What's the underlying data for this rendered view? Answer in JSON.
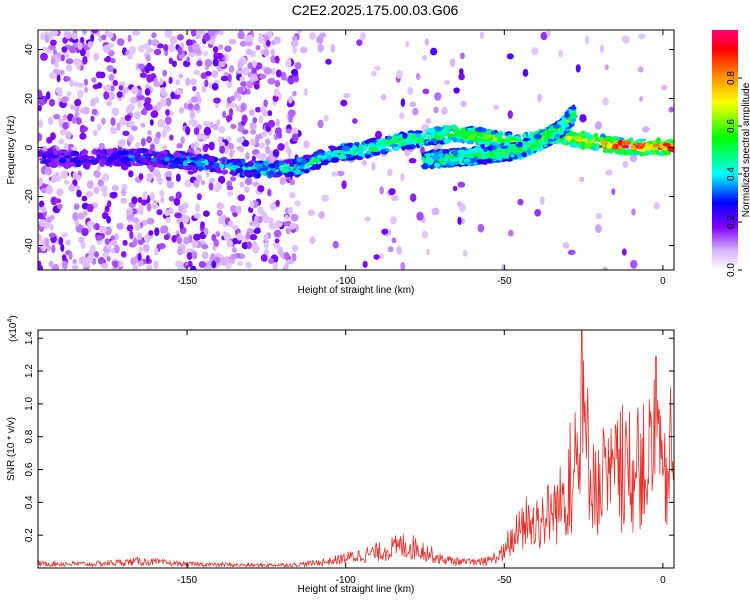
{
  "title": "C2E2.2025.175.00.03.G06",
  "chart_data": [
    {
      "type": "heatmap",
      "xlabel": "Height of straight line (km)",
      "ylabel": "Frequency (Hz)",
      "xlim": [
        -197,
        3.5
      ],
      "ylim": [
        -50,
        48
      ],
      "x_ticks": [
        -150,
        -100,
        -50,
        0
      ],
      "y_ticks": [
        -40,
        -20,
        0,
        20,
        40
      ],
      "colorbar": {
        "label": "Normalized spectral amplitude",
        "range": [
          0,
          1
        ],
        "ticks": [
          0.0,
          0.2,
          0.4,
          0.6,
          0.8
        ],
        "colors": [
          "#ffffff",
          "#d9b3ff",
          "#8000ff",
          "#0000ff",
          "#00ffff",
          "#00ff00",
          "#ffff00",
          "#ff8000",
          "#ff0000",
          "#ff0080"
        ]
      },
      "ridge": [
        {
          "x": -195,
          "y": -4
        },
        {
          "x": -185,
          "y": -5
        },
        {
          "x": -175,
          "y": -4
        },
        {
          "x": -165,
          "y": -4
        },
        {
          "x": -155,
          "y": -5
        },
        {
          "x": -145,
          "y": -6
        },
        {
          "x": -135,
          "y": -8
        },
        {
          "x": -125,
          "y": -9
        },
        {
          "x": -115,
          "y": -8
        },
        {
          "x": -105,
          "y": -3
        },
        {
          "x": -95,
          "y": -1
        },
        {
          "x": -85,
          "y": 2
        },
        {
          "x": -75,
          "y": 4
        },
        {
          "x": -65,
          "y": 6
        },
        {
          "x": -55,
          "y": 4
        },
        {
          "x": -45,
          "y": 2
        },
        {
          "x": -35,
          "y": 5
        },
        {
          "x": -25,
          "y": 3
        },
        {
          "x": -15,
          "y": 1
        },
        {
          "x": -5,
          "y": 0
        },
        {
          "x": 2,
          "y": 0
        }
      ],
      "secondary_ridge": [
        {
          "x": -75,
          "y": -5
        },
        {
          "x": -65,
          "y": -4
        },
        {
          "x": -55,
          "y": -3
        },
        {
          "x": -45,
          "y": -1
        },
        {
          "x": -38,
          "y": 3
        },
        {
          "x": -32,
          "y": 8
        },
        {
          "x": -28,
          "y": 14
        }
      ]
    },
    {
      "type": "line",
      "xlabel": "Height of straight line (km)",
      "ylabel": "SNR (10 * v/v)",
      "y_multiplier": "(x10",
      "y_multiplier_exp": "4",
      "y_multiplier_close": ")",
      "xlim": [
        -197,
        3.5
      ],
      "ylim": [
        0,
        1.45
      ],
      "x_ticks": [
        -150,
        -100,
        -50,
        0
      ],
      "y_ticks": [
        0.2,
        0.4,
        0.6,
        0.8,
        1.0,
        1.2,
        1.4
      ],
      "line_color": "#e8302a",
      "series": [
        {
          "envelope": [
            {
              "x": -197,
              "y": 0.04
            },
            {
              "x": -180,
              "y": 0.035
            },
            {
              "x": -165,
              "y": 0.06
            },
            {
              "x": -150,
              "y": 0.035
            },
            {
              "x": -130,
              "y": 0.025
            },
            {
              "x": -115,
              "y": 0.03
            },
            {
              "x": -105,
              "y": 0.06
            },
            {
              "x": -98,
              "y": 0.1
            },
            {
              "x": -90,
              "y": 0.14
            },
            {
              "x": -82,
              "y": 0.2
            },
            {
              "x": -77,
              "y": 0.18
            },
            {
              "x": -70,
              "y": 0.08
            },
            {
              "x": -62,
              "y": 0.05
            },
            {
              "x": -55,
              "y": 0.06
            },
            {
              "x": -50,
              "y": 0.14
            },
            {
              "x": -45,
              "y": 0.35
            },
            {
              "x": -40,
              "y": 0.4
            },
            {
              "x": -33,
              "y": 0.55
            },
            {
              "x": -28,
              "y": 0.8
            },
            {
              "x": -25,
              "y": 1.2
            },
            {
              "x": -20,
              "y": 0.65
            },
            {
              "x": -15,
              "y": 0.85
            },
            {
              "x": -10,
              "y": 0.8
            },
            {
              "x": -5,
              "y": 0.95
            },
            {
              "x": -2,
              "y": 1.1
            },
            {
              "x": 0,
              "y": 0.7
            },
            {
              "x": 2,
              "y": 0.9
            },
            {
              "x": 3.5,
              "y": 0.85
            }
          ]
        }
      ]
    }
  ]
}
